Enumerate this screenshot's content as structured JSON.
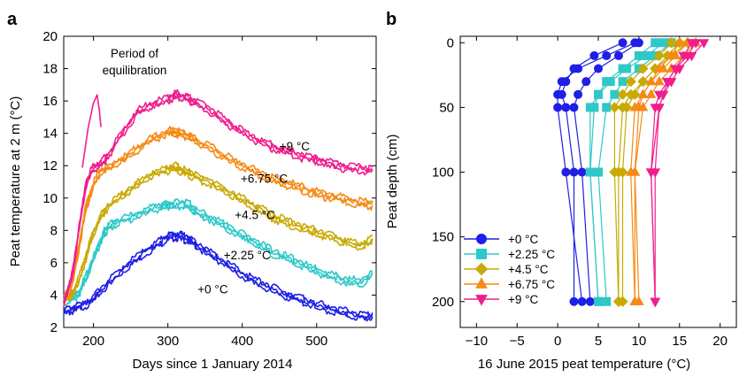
{
  "panel_a_label": "a",
  "panel_b_label": "b",
  "annotation_equilibration": [
    "Period of",
    "equilibration"
  ],
  "colors": {
    "t0": "#1f1fe6",
    "t225": "#2ec8c8",
    "t45": "#c8aa00",
    "t675": "#f58a14",
    "t9": "#f01e8c"
  },
  "chart_data": [
    {
      "type": "line",
      "panel": "a",
      "xlabel": "Days since 1 January 2014",
      "ylabel": "Peat temperature at 2 m (°C)",
      "xlim": [
        160,
        580
      ],
      "ylim": [
        2,
        20
      ],
      "xticks": [
        200,
        300,
        400,
        500
      ],
      "yticks": [
        2,
        4,
        6,
        8,
        10,
        12,
        14,
        16,
        18,
        20
      ],
      "series": [
        {
          "name": "+0 °C",
          "color_key": "t0",
          "label_at": [
            340,
            4.1
          ],
          "x": [
            160,
            170,
            180,
            195,
            210,
            230,
            250,
            270,
            290,
            300,
            310,
            320,
            330,
            340,
            360,
            380,
            400,
            420,
            440,
            460,
            480,
            500,
            520,
            540,
            560,
            575
          ],
          "y": [
            3.1,
            3.2,
            3.4,
            3.7,
            4.4,
            5.3,
            6.1,
            6.8,
            7.4,
            7.7,
            7.8,
            7.7,
            7.5,
            7.2,
            6.6,
            6.0,
            5.4,
            4.9,
            4.5,
            4.1,
            3.8,
            3.5,
            3.2,
            3.0,
            2.8,
            2.8
          ]
        },
        {
          "name": "+2.25 °C",
          "color_key": "t225",
          "label_at": [
            375,
            6.2
          ],
          "x": [
            160,
            170,
            180,
            190,
            200,
            210,
            215,
            220,
            230,
            250,
            270,
            290,
            300,
            310,
            320,
            330,
            340,
            360,
            380,
            400,
            420,
            440,
            460,
            480,
            500,
            520,
            540,
            560,
            575
          ],
          "y": [
            3.7,
            3.9,
            4.2,
            5.2,
            6.4,
            7.5,
            8.0,
            8.3,
            8.6,
            8.9,
            9.3,
            9.6,
            9.7,
            9.7,
            9.8,
            9.6,
            9.2,
            8.8,
            8.3,
            7.8,
            7.3,
            6.8,
            6.4,
            6.0,
            5.6,
            5.3,
            5.0,
            4.9,
            5.4
          ]
        },
        {
          "name": "+4.5 °C",
          "color_key": "t45",
          "label_at": [
            390,
            8.7
          ],
          "x": [
            160,
            170,
            180,
            190,
            200,
            210,
            220,
            240,
            260,
            280,
            300,
            310,
            320,
            330,
            340,
            360,
            380,
            400,
            420,
            440,
            460,
            480,
            500,
            520,
            540,
            560,
            575
          ],
          "y": [
            3.8,
            4.1,
            5.0,
            6.5,
            8.0,
            9.0,
            9.6,
            10.3,
            11.0,
            11.6,
            11.9,
            12.0,
            11.8,
            11.6,
            11.4,
            11.0,
            10.5,
            10.0,
            9.5,
            9.0,
            8.6,
            8.3,
            8.0,
            7.7,
            7.4,
            7.2,
            7.5
          ]
        },
        {
          "name": "+6.75 °C",
          "color_key": "t675",
          "label_at": [
            398,
            10.95
          ],
          "x": [
            160,
            170,
            180,
            190,
            200,
            210,
            220,
            240,
            260,
            280,
            300,
            310,
            320,
            330,
            340,
            360,
            380,
            400,
            420,
            440,
            460,
            480,
            500,
            520,
            540,
            560,
            575
          ],
          "y": [
            3.9,
            4.5,
            7.0,
            9.5,
            11.0,
            11.8,
            12.0,
            12.5,
            13.2,
            13.8,
            14.2,
            14.2,
            14.1,
            13.9,
            13.6,
            13.1,
            12.6,
            12.1,
            11.7,
            11.3,
            11.0,
            10.7,
            10.4,
            10.2,
            10.0,
            9.8,
            9.7
          ]
        },
        {
          "name": "+9 °C",
          "color_key": "t9",
          "label_at": [
            450,
            12.95
          ],
          "x": [
            160,
            170,
            180,
            190,
            200,
            210,
            220,
            240,
            260,
            280,
            300,
            310,
            320,
            330,
            340,
            360,
            380,
            400,
            420,
            440,
            460,
            480,
            500,
            520,
            540,
            560,
            575
          ],
          "y": [
            3.7,
            5.0,
            8.0,
            11.0,
            12.0,
            12.2,
            12.8,
            14.2,
            15.5,
            15.9,
            16.2,
            16.5,
            16.4,
            16.2,
            16.0,
            15.4,
            14.8,
            14.2,
            13.7,
            13.3,
            13.0,
            12.7,
            12.5,
            12.2,
            12.0,
            11.9,
            11.8
          ]
        },
        {
          "name": "",
          "color_key": "t9",
          "x": [
            185,
            193,
            200,
            205,
            208,
            210
          ],
          "y": [
            12.0,
            14.5,
            16.0,
            16.5,
            15.5,
            14.5
          ]
        }
      ]
    },
    {
      "type": "line",
      "panel": "b",
      "xlabel": "16 June 2015 peat temperature (°C)",
      "ylabel": "Peat depth (cm)",
      "xlim": [
        -12,
        22
      ],
      "ylim": [
        220,
        -5
      ],
      "y_inverted": true,
      "xticks": [
        -10,
        -5,
        0,
        5,
        10,
        15,
        20
      ],
      "yticks": [
        0,
        50,
        100,
        150,
        200
      ],
      "legend_position": "bottom-left",
      "depths": [
        0,
        10,
        20,
        30,
        40,
        50,
        100,
        200
      ],
      "series": [
        {
          "name": "+0 °C",
          "color_key": "t0",
          "marker": "circle",
          "profiles": [
            [
              9.5,
              6,
              2.5,
              0.5,
              0,
              0,
              1,
              3
            ],
            [
              8,
              4.5,
              2,
              1,
              0.5,
              1,
              2,
              2
            ],
            [
              10,
              7.5,
              5,
              3.5,
              2.5,
              2,
              3,
              4
            ]
          ]
        },
        {
          "name": "+2.25 °C",
          "color_key": "t225",
          "marker": "square",
          "profiles": [
            [
              13,
              11,
              8.5,
              6.5,
              5,
              4,
              4,
              5
            ],
            [
              14,
              12,
              10,
              8,
              7,
              6,
              5,
              6
            ],
            [
              12,
              10,
              8,
              6,
              5,
              4.5,
              4,
              5
            ]
          ]
        },
        {
          "name": "+4.5 °C",
          "color_key": "t45",
          "marker": "diamond",
          "profiles": [
            [
              14,
              12.5,
              10.5,
              9,
              8,
              7,
              7,
              7.5
            ],
            [
              15,
              13.5,
              12,
              10.5,
              9.5,
              8.5,
              8,
              8
            ],
            [
              16,
              14,
              12,
              10.5,
              9,
              8,
              7.5,
              7.5
            ]
          ]
        },
        {
          "name": "+6.75 °C",
          "color_key": "t675",
          "marker": "triangle-up",
          "profiles": [
            [
              16,
              14.5,
              13,
              11.5,
              10.5,
              10,
              9.5,
              9.5
            ],
            [
              17,
              15.5,
              14,
              12.5,
              11.5,
              10.5,
              9.5,
              10
            ],
            [
              15,
              14,
              12.5,
              11.5,
              10.5,
              9.5,
              9,
              9.5
            ]
          ]
        },
        {
          "name": "+9 °C",
          "color_key": "t9",
          "marker": "triangle-down",
          "profiles": [
            [
              17,
              16,
              14.5,
              13.5,
              12.5,
              12,
              11.5,
              12
            ],
            [
              18,
              16.5,
              15,
              14,
              13,
              12.5,
              12,
              12
            ],
            [
              16.5,
              15.5,
              14.5,
              13.5,
              13,
              12.5,
              11.5,
              12
            ]
          ]
        }
      ]
    }
  ]
}
